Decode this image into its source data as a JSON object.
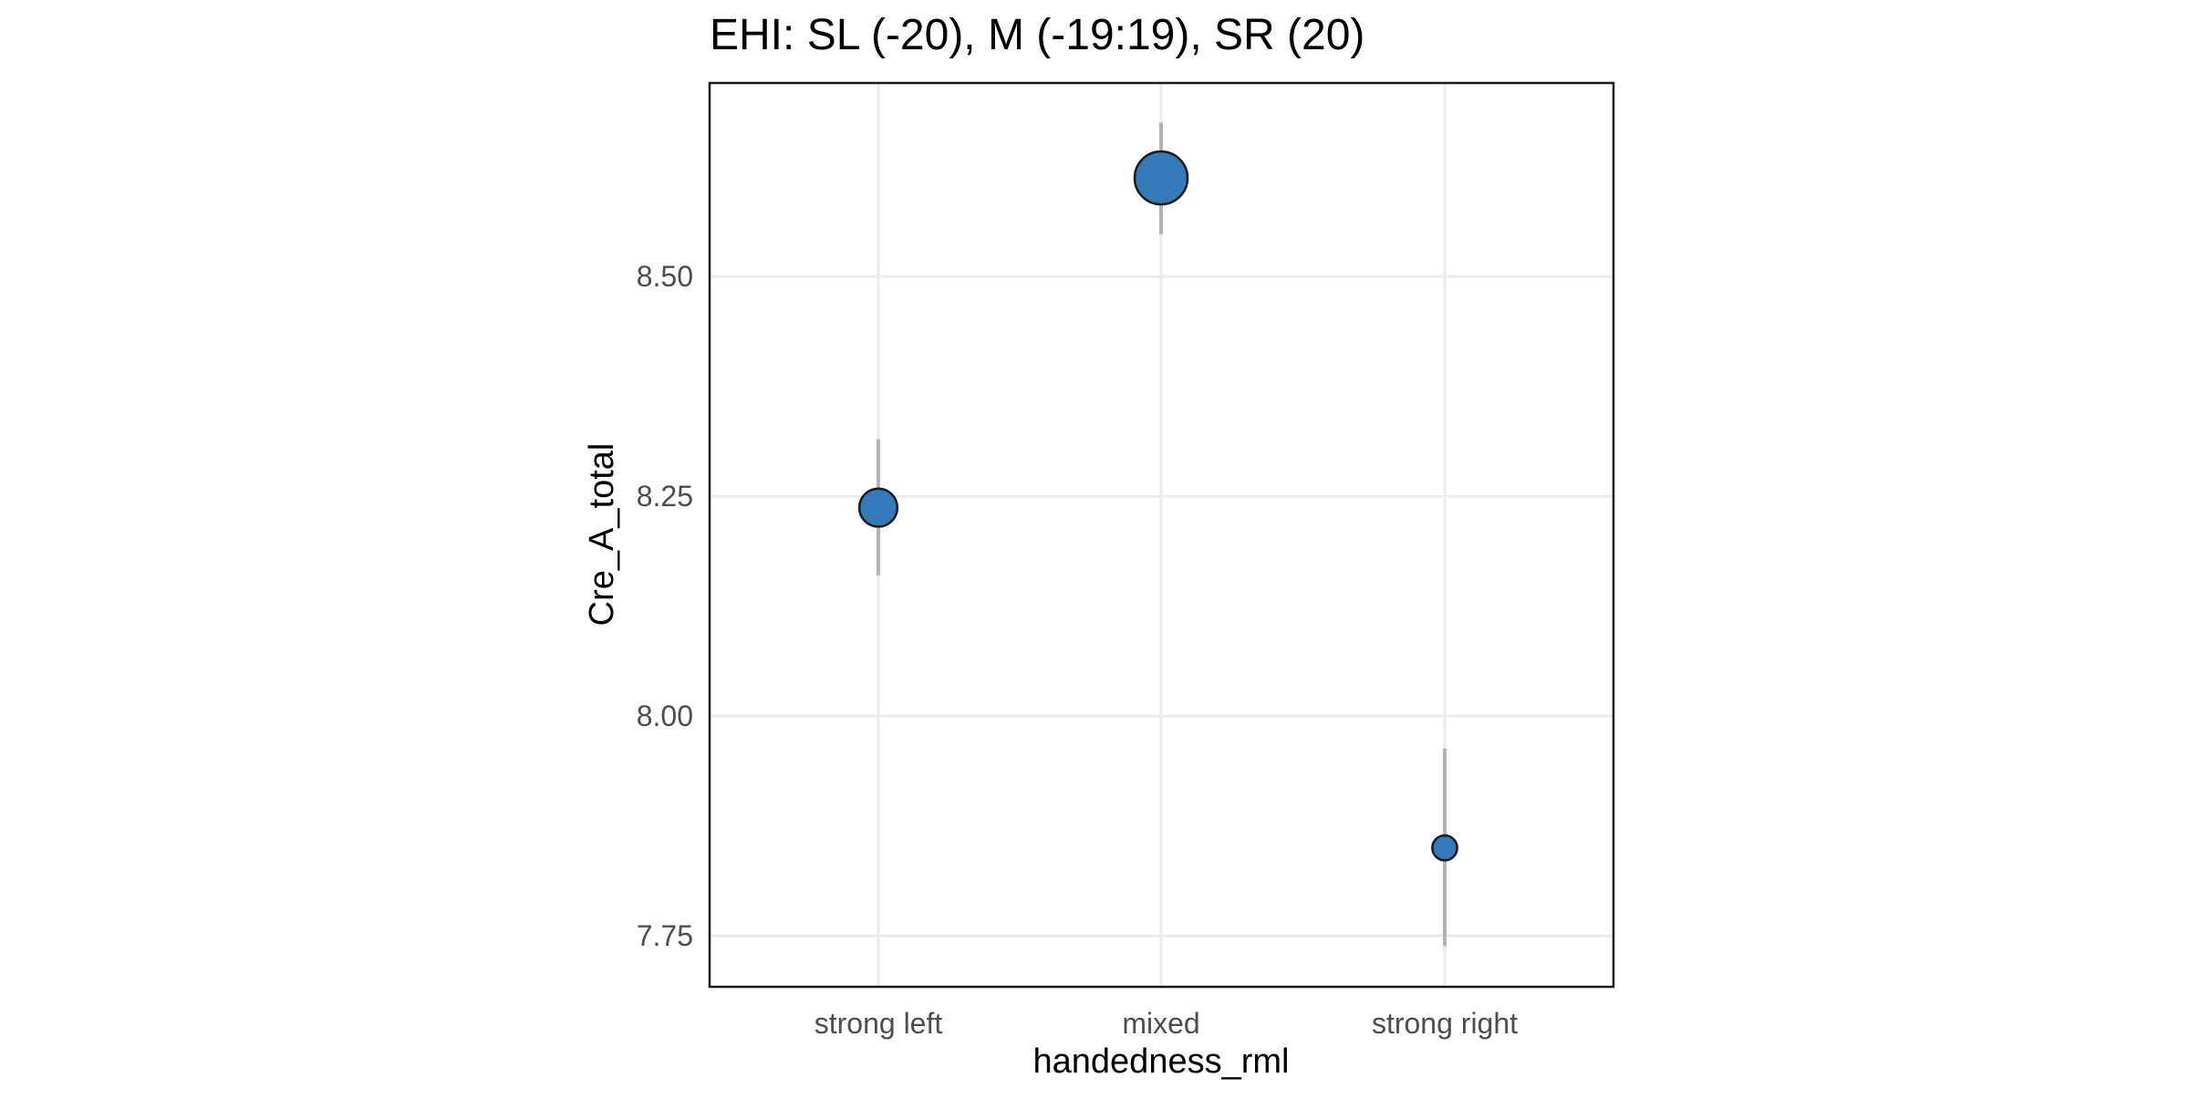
{
  "chart_data": {
    "type": "scatter",
    "title": "EHI: SL (-20), M (-19:19), SR (20)",
    "xlabel": "handedness_rml",
    "ylabel": "Cre_A_total",
    "categories": [
      "strong left",
      "mixed",
      "strong right"
    ],
    "y_ticks": [
      7.75,
      8.0,
      8.25,
      8.5
    ],
    "y_tick_labels": [
      "7.75",
      "8.00",
      "8.25",
      "8.50"
    ],
    "ylim": [
      7.692,
      8.72
    ],
    "grid": true,
    "point_color": "#3479b9",
    "outline_color": "#1a1a1a",
    "errorbar_color": "#b3b3b3",
    "series": [
      {
        "points": [
          {
            "x": "strong left",
            "y": 8.237,
            "lower": 8.16,
            "upper": 8.315,
            "relative_size": 0.72
          },
          {
            "x": "mixed",
            "y": 8.612,
            "lower": 8.548,
            "upper": 8.675,
            "relative_size": 1.0
          },
          {
            "x": "strong right",
            "y": 7.85,
            "lower": 7.738,
            "upper": 7.963,
            "relative_size": 0.47
          }
        ]
      }
    ]
  }
}
